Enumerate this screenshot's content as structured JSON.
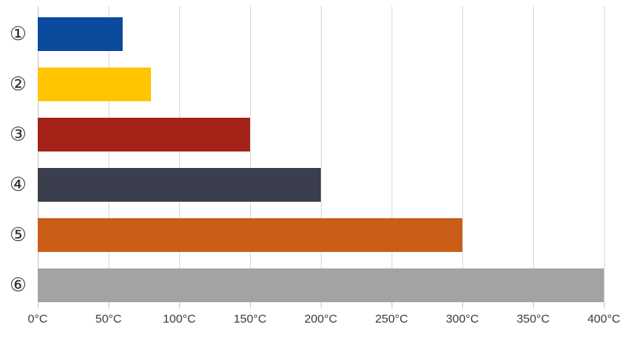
{
  "chart_data": {
    "type": "bar",
    "orientation": "horizontal",
    "title": "",
    "xlabel": "",
    "ylabel": "",
    "categories": [
      "①",
      "②",
      "③",
      "④",
      "⑤",
      "⑥"
    ],
    "values": [
      60,
      80,
      150,
      200,
      300,
      400
    ],
    "value_unit": "°C",
    "xlim": [
      0,
      400
    ],
    "x_tick_values": [
      0,
      50,
      100,
      150,
      200,
      250,
      300,
      350,
      400
    ],
    "x_tick_labels": [
      "0°C",
      "50°C",
      "100°C",
      "150°C",
      "200°C",
      "250°C",
      "300°C",
      "350°C",
      "400°C"
    ],
    "grid": true,
    "legend": false,
    "series": [
      {
        "category": "①",
        "value": 60,
        "color": "#0b4a9d"
      },
      {
        "category": "②",
        "value": 80,
        "color": "#fec500"
      },
      {
        "category": "③",
        "value": 150,
        "color": "#a42218"
      },
      {
        "category": "④",
        "value": 200,
        "color": "#3b3f4d"
      },
      {
        "category": "⑤",
        "value": 300,
        "color": "#ca5d17"
      },
      {
        "category": "⑥",
        "value": 400,
        "color": "#a2a4a4"
      }
    ]
  },
  "style": {
    "background": "#ffffff",
    "gridline_color": "#d9d9d9",
    "axis_line_color": "#c6c6c6",
    "tick_color": "#c6c6c6",
    "label_color": "#3b3b3b"
  }
}
